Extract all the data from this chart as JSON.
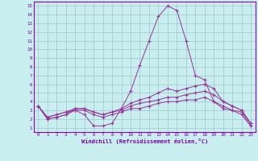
{
  "xlabel": "Windchill (Refroidissement éolien,°C)",
  "background_color": "#c8eef0",
  "grid_color": "#a0c8c8",
  "line_color": "#993399",
  "xlim": [
    -0.5,
    23.5
  ],
  "ylim": [
    0.5,
    15.5
  ],
  "xticks": [
    0,
    1,
    2,
    3,
    4,
    5,
    6,
    7,
    8,
    9,
    10,
    11,
    12,
    13,
    14,
    15,
    16,
    17,
    18,
    19,
    20,
    21,
    22,
    23
  ],
  "yticks": [
    1,
    2,
    3,
    4,
    5,
    6,
    7,
    8,
    9,
    10,
    11,
    12,
    13,
    14,
    15
  ],
  "line1": [
    3.5,
    2.0,
    2.2,
    2.5,
    3.0,
    2.5,
    1.2,
    1.2,
    1.5,
    3.2,
    5.2,
    8.2,
    11.0,
    13.8,
    15.0,
    14.5,
    11.0,
    7.0,
    6.5,
    4.0,
    3.2,
    3.0,
    2.8,
    1.2
  ],
  "line2": [
    3.5,
    2.0,
    2.2,
    2.5,
    3.2,
    3.2,
    2.8,
    2.5,
    2.8,
    3.2,
    3.8,
    4.2,
    4.5,
    5.0,
    5.5,
    5.2,
    5.5,
    5.8,
    6.0,
    5.5,
    4.0,
    3.5,
    3.0,
    1.5
  ],
  "line3": [
    3.5,
    2.2,
    2.5,
    2.8,
    3.2,
    3.2,
    2.8,
    2.5,
    2.8,
    3.0,
    3.5,
    3.8,
    4.0,
    4.2,
    4.5,
    4.5,
    4.8,
    5.0,
    5.2,
    4.8,
    4.0,
    3.5,
    3.0,
    1.5
  ],
  "line4": [
    3.5,
    2.2,
    2.5,
    2.8,
    3.0,
    3.0,
    2.5,
    2.2,
    2.5,
    2.8,
    3.2,
    3.2,
    3.5,
    3.8,
    4.0,
    4.0,
    4.2,
    4.2,
    4.5,
    4.0,
    3.5,
    3.0,
    2.5,
    1.2
  ]
}
